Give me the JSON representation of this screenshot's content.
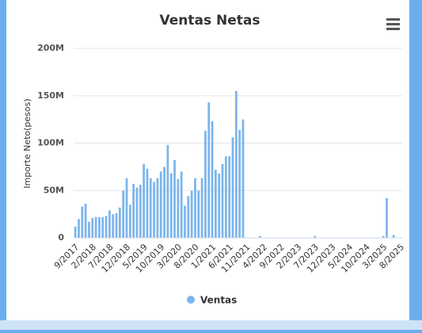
{
  "chart_data": {
    "type": "bar",
    "title": "Ventas Netas",
    "y_label": "Importe Neto(pesos)",
    "categories": [
      "9/2017",
      null,
      null,
      null,
      null,
      "2/2018",
      null,
      null,
      null,
      null,
      "7/2018",
      null,
      null,
      null,
      null,
      "12/2018",
      null,
      null,
      null,
      null,
      "5/2019",
      null,
      null,
      null,
      null,
      "10/2019",
      null,
      null,
      null,
      null,
      "3/2020",
      null,
      null,
      null,
      null,
      "8/2020",
      null,
      null,
      null,
      null,
      "1/2021",
      null,
      null,
      null,
      null,
      "6/2021",
      null,
      null,
      null,
      null,
      "11/2021",
      null,
      null,
      null,
      null,
      "4/2022",
      null,
      null,
      null,
      null,
      "9/2022",
      null,
      null,
      null,
      null,
      "2/2023",
      null,
      null,
      null,
      null,
      "7/2023",
      null,
      null,
      null,
      null,
      "12/2023",
      null,
      null,
      null,
      null,
      "5/2024",
      null,
      null,
      null,
      null,
      "10/2024",
      null,
      null,
      null,
      null,
      "3/2025",
      null,
      null,
      null,
      null,
      "8/2025"
    ],
    "series": [
      {
        "name": "Ventas",
        "color": "#7cb5ec",
        "values": [
          12000000,
          20000000,
          33000000,
          36000000,
          17000000,
          21000000,
          22000000,
          22000000,
          22000000,
          23000000,
          29000000,
          25000000,
          26000000,
          32000000,
          50000000,
          63000000,
          35000000,
          57000000,
          53000000,
          56000000,
          78000000,
          73000000,
          63000000,
          59000000,
          63000000,
          70000000,
          75000000,
          98000000,
          68000000,
          82000000,
          62000000,
          70000000,
          34000000,
          44000000,
          50000000,
          63000000,
          50000000,
          63000000,
          113000000,
          143000000,
          123000000,
          72000000,
          68000000,
          78000000,
          86000000,
          86000000,
          106000000,
          155000000,
          114000000,
          125000000,
          0,
          0,
          0,
          0,
          2000000,
          0,
          0,
          0,
          0,
          0,
          0,
          0,
          0,
          0,
          0,
          0,
          0,
          0,
          0,
          0,
          2000000,
          0,
          0,
          0,
          0,
          0,
          0,
          0,
          0,
          0,
          0,
          0,
          0,
          0,
          0,
          0,
          0,
          0,
          0,
          0,
          2000000,
          42000000,
          0,
          3000000,
          0,
          0
        ]
      }
    ],
    "ylim": [
      0,
      200000000
    ],
    "yticks": [
      {
        "value": 0,
        "label": "0"
      },
      {
        "value": 50000000,
        "label": "50M"
      },
      {
        "value": 100000000,
        "label": "100M"
      },
      {
        "value": 150000000,
        "label": "150M"
      },
      {
        "value": 200000000,
        "label": "200M"
      }
    ],
    "grid": true
  }
}
